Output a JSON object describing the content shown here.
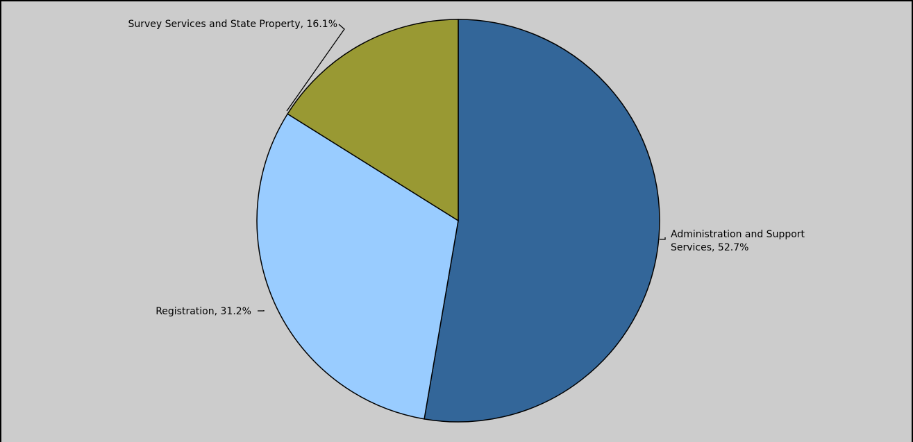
{
  "chart_data": {
    "type": "pie",
    "title": "",
    "start_angle_deg": 0,
    "direction": "clockwise",
    "background": "#cccccc",
    "slices": [
      {
        "label": "Administration and Support Services",
        "value": 52.7,
        "display": [
          "Administration and Support",
          "Services, 52.7%"
        ],
        "color": "#336699"
      },
      {
        "label": "Registration",
        "value": 31.2,
        "display": [
          "Registration, 31.2%"
        ],
        "color": "#99ccff"
      },
      {
        "label": "Survey Services and State Property",
        "value": 16.1,
        "display": [
          "Survey Services and State Property, 16.1%"
        ],
        "color": "#999933"
      }
    ]
  }
}
